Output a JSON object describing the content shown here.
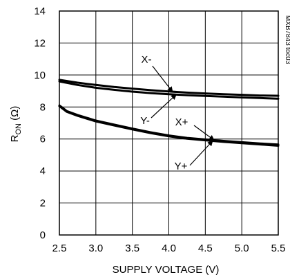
{
  "chart_data": {
    "type": "line",
    "xlabel": "SUPPLY VOLTAGE (V)",
    "ylabel": "R",
    "ylabel_subscript": "ON",
    "ylabel_unit": " (Ω)",
    "xlim": [
      2.5,
      5.5
    ],
    "ylim": [
      0,
      14
    ],
    "x_ticks": [
      "2.5",
      "3.0",
      "3.5",
      "4.0",
      "4.5",
      "5.0",
      "5.5"
    ],
    "y_ticks": [
      "0",
      "2",
      "4",
      "6",
      "8",
      "10",
      "12",
      "14"
    ],
    "grid": true,
    "figure_code": "MXB7843 toc03",
    "series": [
      {
        "name": "X-",
        "x": [
          2.5,
          2.75,
          3.0,
          3.25,
          3.5,
          3.75,
          4.0,
          4.25,
          4.5,
          4.75,
          5.0,
          5.25,
          5.5
        ],
        "y": [
          9.7,
          9.52,
          9.38,
          9.25,
          9.15,
          9.05,
          8.97,
          8.9,
          8.85,
          8.8,
          8.76,
          8.72,
          8.7
        ]
      },
      {
        "name": "Y-",
        "x": [
          2.5,
          2.75,
          3.0,
          3.25,
          3.5,
          3.75,
          4.0,
          4.25,
          4.5,
          4.75,
          5.0,
          5.25,
          5.5
        ],
        "y": [
          9.6,
          9.38,
          9.2,
          9.07,
          8.96,
          8.87,
          8.8,
          8.74,
          8.69,
          8.65,
          8.6,
          8.56,
          8.52
        ]
      },
      {
        "name": "X+",
        "x": [
          2.5,
          2.6,
          2.75,
          3.0,
          3.25,
          3.5,
          3.75,
          4.0,
          4.25,
          4.5,
          4.75,
          5.0,
          5.25,
          5.5
        ],
        "y": [
          8.1,
          7.75,
          7.5,
          7.15,
          6.9,
          6.65,
          6.42,
          6.22,
          6.07,
          5.97,
          5.88,
          5.8,
          5.72,
          5.65
        ]
      },
      {
        "name": "Y+",
        "x": [
          2.5,
          2.6,
          2.75,
          3.0,
          3.25,
          3.5,
          3.75,
          4.0,
          4.25,
          4.5,
          4.75,
          5.0,
          5.25,
          5.5
        ],
        "y": [
          8.05,
          7.7,
          7.45,
          7.1,
          6.85,
          6.6,
          6.37,
          6.17,
          6.02,
          5.92,
          5.82,
          5.74,
          5.66,
          5.58
        ]
      }
    ],
    "annotations": [
      {
        "label": "X-",
        "series": "X-"
      },
      {
        "label": "Y-",
        "series": "Y-"
      },
      {
        "label": "X+",
        "series": "X+"
      },
      {
        "label": "Y+",
        "series": "Y+"
      }
    ]
  }
}
